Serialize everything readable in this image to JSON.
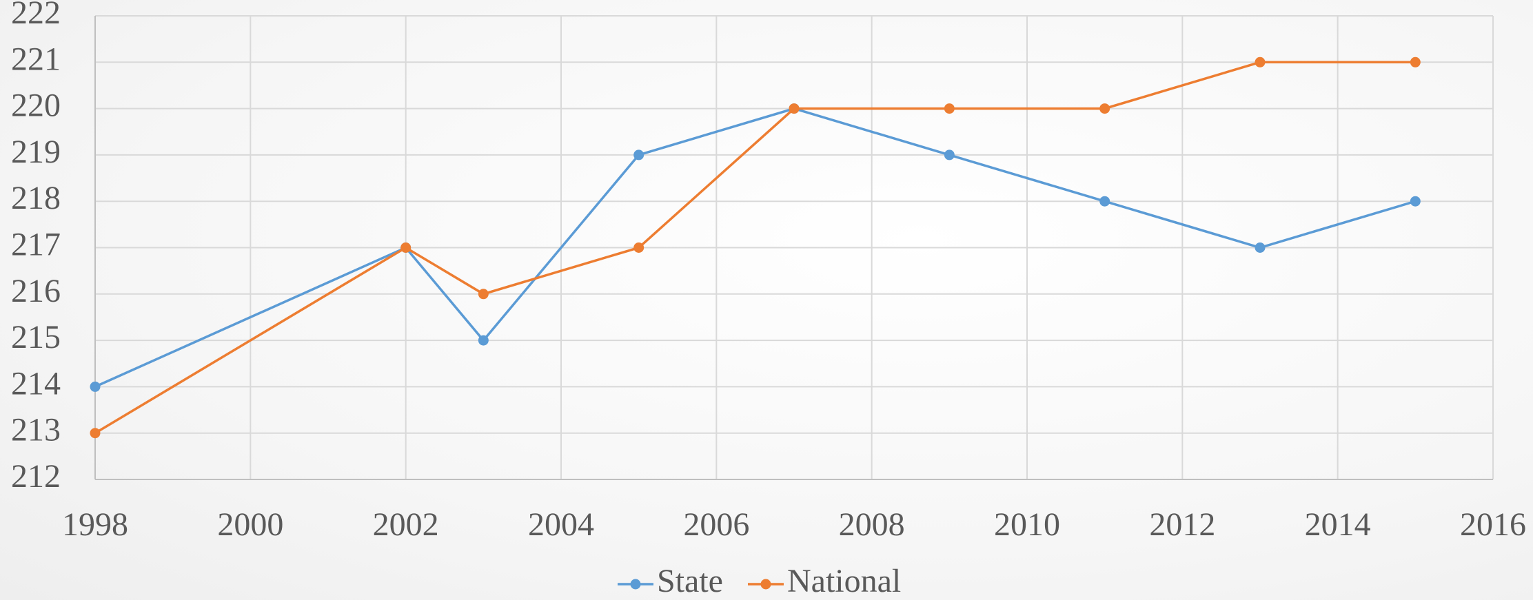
{
  "chart_data": {
    "type": "line",
    "x": [
      1998,
      2002,
      2003,
      2005,
      2007,
      2009,
      2011,
      2013,
      2015
    ],
    "series": [
      {
        "name": "State",
        "color": "#5b9bd5",
        "values": [
          214,
          217,
          215,
          219,
          220,
          219,
          218,
          217,
          218
        ]
      },
      {
        "name": "National",
        "color": "#ed7d31",
        "values": [
          213,
          217,
          216,
          217,
          220,
          220,
          220,
          221,
          221
        ]
      }
    ],
    "xlim": [
      1998,
      2016
    ],
    "xticks": [
      1998,
      2000,
      2002,
      2004,
      2006,
      2008,
      2010,
      2012,
      2014,
      2016
    ],
    "ylim": [
      212,
      222
    ],
    "yticks": [
      212,
      213,
      214,
      215,
      216,
      217,
      218,
      219,
      220,
      221,
      222
    ],
    "grid": true,
    "legend": "bottom"
  }
}
